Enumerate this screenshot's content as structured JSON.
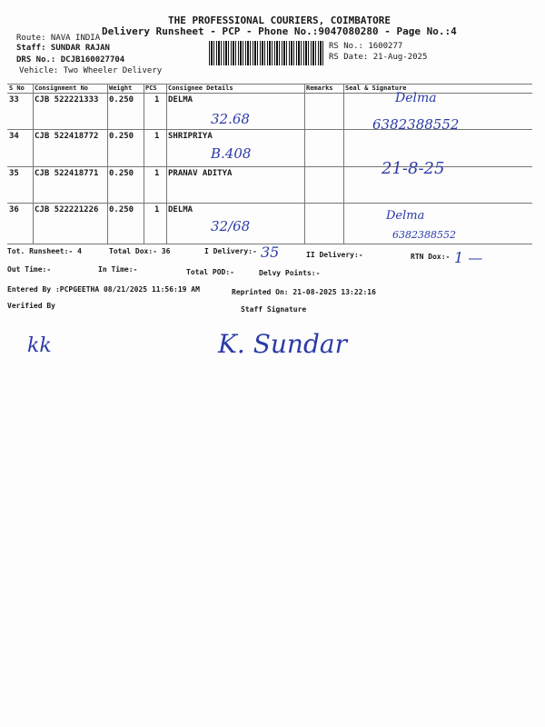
{
  "header": {
    "company": "THE PROFESSIONAL COURIERS, COIMBATORE",
    "title": "Delivery Runsheet - PCP - Phone No.:9047080280 - Page No.:4",
    "route": "Route: NAVA INDIA",
    "staff": "Staff: SUNDAR RAJAN",
    "drs": "DRS No.: DCJB160027704",
    "vehicle": "Vehicle: Two Wheeler Delivery",
    "rs_no": "RS No.: 1600277",
    "rs_date": "RS Date: 21-Aug-2025"
  },
  "table": {
    "columns": [
      "S No",
      "Consignment No",
      "Weight",
      "PCS",
      "Consignee Details",
      "Remarks",
      "Seal & Signature"
    ],
    "rows": [
      {
        "sno": "33",
        "cons": "CJB 522221333",
        "weight": "0.250",
        "pcs": "1",
        "name": "DELMA"
      },
      {
        "sno": "34",
        "cons": "CJB 522418772",
        "weight": "0.250",
        "pcs": "1",
        "name": "SHRIPRIYA"
      },
      {
        "sno": "35",
        "cons": "CJB 522418771",
        "weight": "0.250",
        "pcs": "1",
        "name": "PRANAV ADITYA"
      },
      {
        "sno": "36",
        "cons": "CJB 522221226",
        "weight": "0.250",
        "pcs": "1",
        "name": "DELMA"
      }
    ]
  },
  "summary": {
    "tot_runsheet": "Tot. Runsheet:- 4",
    "total_dox": "Total Dox:-  36",
    "i_delivery": "I Delivery:-",
    "ii_delivery": "II Delivery:-",
    "rtn_dox": "RTN Dox:-",
    "out_time": "Out Time:-",
    "in_time": "In Time:-",
    "total_pod": "Total POD:-",
    "delvy_points": "Delvy Points:-",
    "entered_by": "Entered By :PCPGEETHA 08/21/2025 11:56:19 AM",
    "reprinted_on": "Reprinted On: 21-08-2025 13:22:16",
    "verified_by": "Verified By",
    "staff_signature": "Staff Signature"
  },
  "handwriting": {
    "r33_note": "32.68",
    "r33_sig": "Delma",
    "r33_phone": "6382388552",
    "r34_note": "B.408",
    "r34_sig": "21-8-25",
    "r36_note": "32/68",
    "r36_sig": "Delma",
    "r36_phone": "6382388552",
    "i_delivery": "35",
    "rtn": "1 —",
    "verified": "kk",
    "staff": "K. Sundar"
  },
  "ink_color": "#2a3aa8"
}
